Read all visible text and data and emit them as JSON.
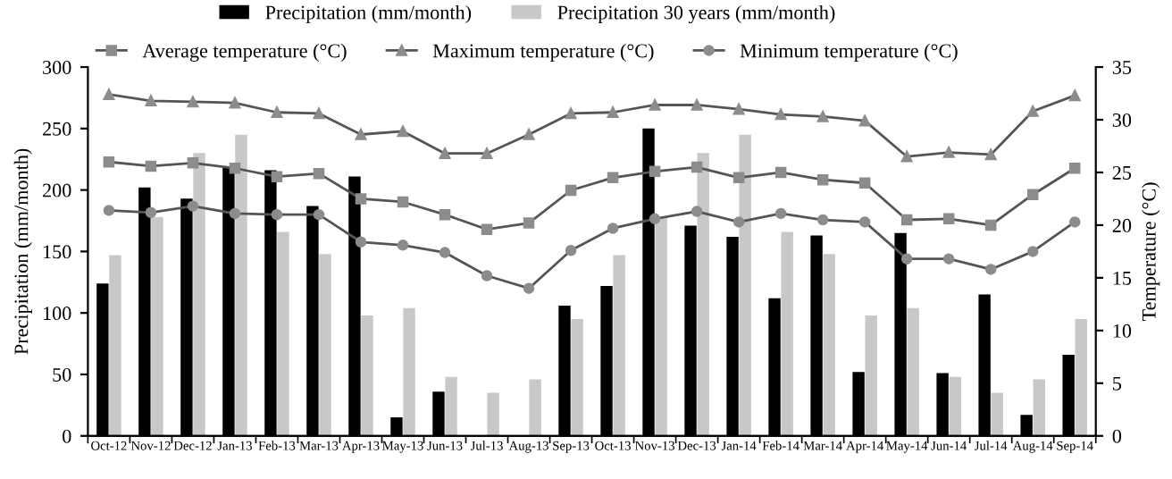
{
  "chart_data": {
    "type": "bar",
    "ylabel": "Precipitation (mm/month)",
    "y2label": "Temperature (°C)",
    "categories": [
      "Oct-12",
      "Nov-12",
      "Dec-12",
      "Jan-13",
      "Feb-13",
      "Mar-13",
      "Apr-13",
      "May-13",
      "Jun-13",
      "Jul-13",
      "Aug-13",
      "Sep-13",
      "Oct-13",
      "Nov-13",
      "Dec-13",
      "Jan-14",
      "Feb-14",
      "Mar-14",
      "Apr-14",
      "May-14",
      "Jun-14",
      "Jul-14",
      "Aug-14",
      "Sep-14"
    ],
    "series": [
      {
        "name": "Precipitation (mm/month)",
        "color": "#000000",
        "values": [
          124,
          202,
          193,
          219,
          216,
          187,
          211,
          15,
          36,
          0,
          0,
          106,
          122,
          250,
          171,
          162,
          112,
          163,
          52,
          165,
          51,
          115,
          17,
          66
        ]
      },
      {
        "name": "Precipitation 30 years (mm/month)",
        "color": "#c8c8c8",
        "values": [
          147,
          178,
          230,
          245,
          166,
          148,
          98,
          104,
          48,
          35,
          46,
          95,
          147,
          178,
          230,
          245,
          166,
          148,
          98,
          104,
          48,
          35,
          46,
          95
        ]
      },
      {
        "name": "Average temperature (°C)",
        "type": "line",
        "axis": "y2",
        "marker": "square",
        "color": "#555555",
        "values": [
          26.0,
          25.6,
          25.9,
          25.4,
          24.6,
          24.9,
          22.5,
          22.2,
          21.0,
          19.6,
          20.2,
          23.3,
          24.5,
          25.1,
          25.5,
          24.5,
          25.0,
          24.3,
          24.0,
          20.5,
          20.6,
          20.0,
          22.9,
          25.4
        ]
      },
      {
        "name": "Maximum temperature (°C)",
        "type": "line",
        "axis": "y2",
        "marker": "triangle",
        "color": "#555555",
        "values": [
          32.4,
          31.8,
          31.7,
          31.6,
          30.7,
          30.6,
          28.6,
          28.9,
          26.8,
          26.8,
          28.6,
          30.6,
          30.7,
          31.4,
          31.4,
          31.0,
          30.5,
          30.3,
          29.9,
          26.5,
          26.9,
          26.7,
          30.8,
          32.3
        ]
      },
      {
        "name": "Minimum temperature (°C)",
        "type": "line",
        "axis": "y2",
        "marker": "circle",
        "color": "#555555",
        "values": [
          21.4,
          21.2,
          21.8,
          21.1,
          21.0,
          21.0,
          18.4,
          18.1,
          17.4,
          15.2,
          14.0,
          17.6,
          19.7,
          20.6,
          21.3,
          20.3,
          21.1,
          20.5,
          20.3,
          16.8,
          16.8,
          15.8,
          17.5,
          20.3
        ]
      }
    ],
    "ylim": [
      0,
      300
    ],
    "yticks": [
      0,
      50,
      100,
      150,
      200,
      250,
      300
    ],
    "y2lim": [
      0,
      35
    ],
    "y2ticks": [
      0,
      5,
      10,
      15,
      20,
      25,
      30,
      35
    ],
    "grid": false,
    "legend": "top"
  }
}
